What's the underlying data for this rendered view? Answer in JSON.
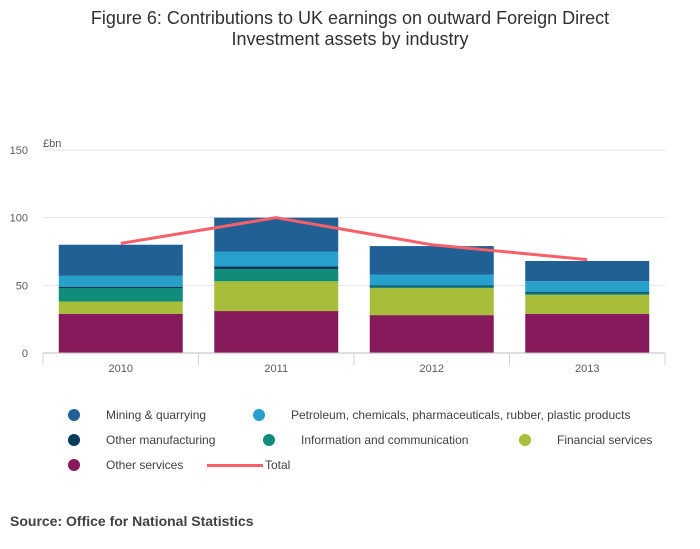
{
  "title": {
    "line1": "Figure 6: Contributions to UK earnings on outward Foreign Direct",
    "line2": "Investment assets by industry"
  },
  "source": "Source: Office for National Statistics",
  "chart_data": {
    "type": "bar",
    "stacked": true,
    "title": "Figure 6: Contributions to UK earnings on outward Foreign Direct Investment assets by industry",
    "ylabel": "£bn",
    "xlabel": "",
    "ylim": [
      0,
      150
    ],
    "yticks": [
      0,
      50,
      100,
      150
    ],
    "categories": [
      "2010",
      "2011",
      "2012",
      "2013"
    ],
    "series": [
      {
        "name": "Other services",
        "color": "#871a5b",
        "values": [
          29,
          31,
          28,
          29
        ]
      },
      {
        "name": "Financial services",
        "color": "#a8bd3a",
        "values": [
          9,
          22,
          20,
          14
        ]
      },
      {
        "name": "Information and communication",
        "color": "#118c7b",
        "values": [
          10,
          9,
          1,
          1
        ]
      },
      {
        "name": "Other manufacturing",
        "color": "#003c57",
        "values": [
          1,
          2,
          1,
          1
        ]
      },
      {
        "name": "Petroleum, chemicals, pharmaceuticals, rubber, plastic products",
        "color": "#27a0cc",
        "values": [
          8,
          11,
          8,
          8
        ]
      },
      {
        "name": "Mining & quarrying",
        "color": "#206095",
        "values": [
          23,
          25,
          21,
          15
        ]
      }
    ],
    "line": {
      "name": "Total",
      "color": "#f66068",
      "values": [
        81,
        100,
        80,
        69
      ]
    },
    "legend": [
      {
        "label": "Mining & quarrying",
        "color": "#206095",
        "kind": "dot"
      },
      {
        "label": "Petroleum, chemicals, pharmaceuticals, rubber, plastic products",
        "color": "#27a0cc",
        "kind": "dot"
      },
      {
        "label": "Other manufacturing",
        "color": "#003c57",
        "kind": "dot"
      },
      {
        "label": "Information and communication",
        "color": "#118c7b",
        "kind": "dot"
      },
      {
        "label": "Financial services",
        "color": "#a8bd3a",
        "kind": "dot"
      },
      {
        "label": "Other services",
        "color": "#871a5b",
        "kind": "dot"
      },
      {
        "label": "Total",
        "color": "#f66068",
        "kind": "line"
      }
    ]
  }
}
